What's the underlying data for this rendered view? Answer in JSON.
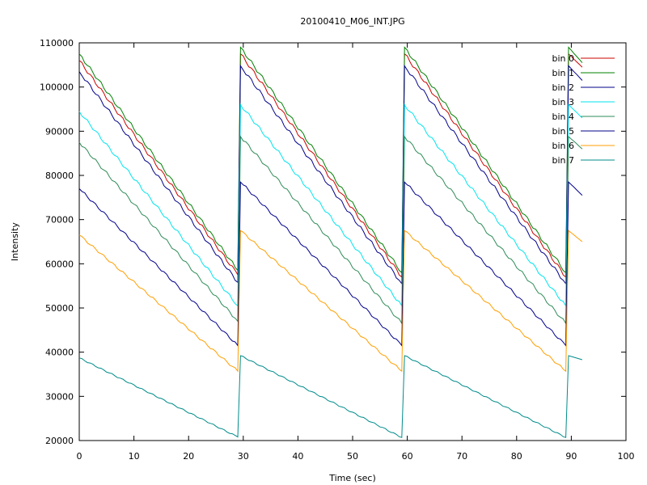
{
  "chart_data": {
    "type": "line",
    "title": "20100410_M06_INT.JPG",
    "xlabel": "Time (sec)",
    "ylabel": "Intensity",
    "xlim": [
      0,
      100
    ],
    "ylim": [
      20000,
      110000
    ],
    "x_ticks": [
      0,
      10,
      20,
      30,
      40,
      50,
      60,
      70,
      80,
      90,
      100
    ],
    "y_ticks": [
      20000,
      30000,
      40000,
      50000,
      60000,
      70000,
      80000,
      90000,
      100000,
      110000
    ],
    "grid": false,
    "legend_position": "top-right",
    "x": [
      0,
      29,
      29.5,
      59,
      59.5,
      89,
      89.5,
      92
    ],
    "series": [
      {
        "name": "bin 0",
        "color": "#cc0000",
        "values": [
          106000,
          57500,
          107500,
          57000,
          107500,
          57000,
          107500,
          104500
        ]
      },
      {
        "name": "bin 1",
        "color": "#008000",
        "values": [
          107500,
          58500,
          109000,
          58000,
          109000,
          58000,
          109000,
          105500
        ]
      },
      {
        "name": "bin 2",
        "color": "#00008b",
        "values": [
          103500,
          55800,
          104800,
          55500,
          104800,
          55500,
          104800,
          101500
        ]
      },
      {
        "name": "bin 3",
        "color": "#00e5ee",
        "values": [
          94500,
          50500,
          96000,
          50500,
          96000,
          50500,
          96000,
          93000
        ]
      },
      {
        "name": "bin 4",
        "color": "#2e8b57",
        "values": [
          87500,
          47000,
          88800,
          46500,
          88800,
          46500,
          88800,
          86000
        ]
      },
      {
        "name": "bin 5",
        "color": "#00008b",
        "values": [
          77000,
          41500,
          78500,
          41500,
          78500,
          41500,
          78500,
          75500
        ]
      },
      {
        "name": "bin 6",
        "color": "#ff9f00",
        "values": [
          66500,
          35700,
          67500,
          35700,
          67500,
          35700,
          67500,
          65000
        ]
      },
      {
        "name": "bin 7",
        "color": "#008b8b",
        "values": [
          38700,
          20800,
          39200,
          20700,
          39200,
          20700,
          39200,
          38300
        ]
      }
    ]
  }
}
